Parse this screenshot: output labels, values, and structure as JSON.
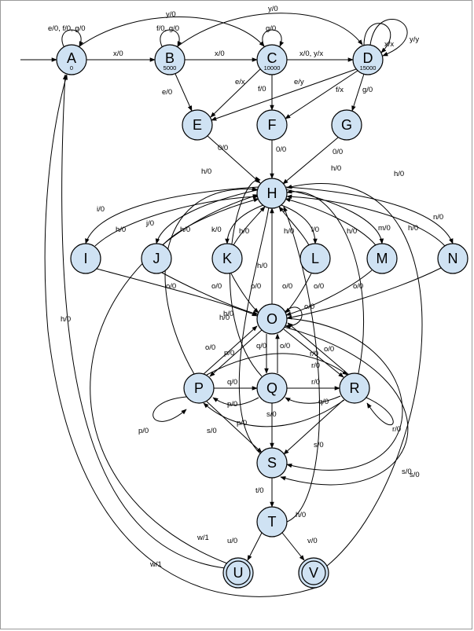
{
  "nodes": [
    {
      "id": "A",
      "label": "A",
      "sub": "0"
    },
    {
      "id": "B",
      "label": "B",
      "sub": "5000"
    },
    {
      "id": "C",
      "label": "C",
      "sub": "10000"
    },
    {
      "id": "D",
      "label": "D",
      "sub": "15000"
    },
    {
      "id": "E",
      "label": "E"
    },
    {
      "id": "F",
      "label": "F"
    },
    {
      "id": "G",
      "label": "G"
    },
    {
      "id": "H",
      "label": "H"
    },
    {
      "id": "I",
      "label": "I"
    },
    {
      "id": "J",
      "label": "J"
    },
    {
      "id": "K",
      "label": "K"
    },
    {
      "id": "L",
      "label": "L"
    },
    {
      "id": "M",
      "label": "M"
    },
    {
      "id": "N",
      "label": "N"
    },
    {
      "id": "O",
      "label": "O"
    },
    {
      "id": "P",
      "label": "P"
    },
    {
      "id": "Q",
      "label": "Q"
    },
    {
      "id": "R",
      "label": "R"
    },
    {
      "id": "S",
      "label": "S"
    },
    {
      "id": "T",
      "label": "T"
    },
    {
      "id": "U",
      "label": "U",
      "accepting": true
    },
    {
      "id": "V",
      "label": "V",
      "accepting": true
    }
  ],
  "edges": [
    {
      "id": "e-start-A",
      "from": "start",
      "to": "A",
      "label": ""
    },
    {
      "id": "e-A-A",
      "from": "A",
      "to": "A",
      "label": "e/0, f/0, g/0"
    },
    {
      "id": "e-A-B",
      "from": "A",
      "to": "B",
      "label": "x/0"
    },
    {
      "id": "e-A-C",
      "from": "A",
      "to": "C",
      "label": "y/0"
    },
    {
      "id": "e-B-B",
      "from": "B",
      "to": "B",
      "label": "f/0, g/0"
    },
    {
      "id": "e-B-C",
      "from": "B",
      "to": "C",
      "label": "x/0"
    },
    {
      "id": "e-B-D",
      "from": "B",
      "to": "D",
      "label": "y/0"
    },
    {
      "id": "e-B-E",
      "from": "B",
      "to": "E",
      "label": "e/0"
    },
    {
      "id": "e-C-C",
      "from": "C",
      "to": "C",
      "label": "g/0"
    },
    {
      "id": "e-C-D",
      "from": "C",
      "to": "D",
      "label": "x/0, y/x"
    },
    {
      "id": "e-C-E",
      "from": "C",
      "to": "E",
      "label": "e/x"
    },
    {
      "id": "e-C-F",
      "from": "C",
      "to": "F",
      "label": "f/0"
    },
    {
      "id": "e-D-D1",
      "from": "D",
      "to": "D",
      "label": "x/x"
    },
    {
      "id": "e-D-D2",
      "from": "D",
      "to": "D",
      "label": "y/y"
    },
    {
      "id": "e-D-E",
      "from": "D",
      "to": "E",
      "label": "e/y"
    },
    {
      "id": "e-D-F",
      "from": "D",
      "to": "F",
      "label": "f/x"
    },
    {
      "id": "e-D-G",
      "from": "D",
      "to": "G",
      "label": "g/0"
    },
    {
      "id": "e-E-H",
      "from": "E",
      "to": "H",
      "label": "0/0"
    },
    {
      "id": "e-F-H",
      "from": "F",
      "to": "H",
      "label": "0/0"
    },
    {
      "id": "e-G-H",
      "from": "G",
      "to": "H",
      "label": "0/0"
    },
    {
      "id": "e-H-I",
      "from": "H",
      "to": "I",
      "label": "i/0"
    },
    {
      "id": "e-I-H",
      "from": "I",
      "to": "H",
      "label": "h/0"
    },
    {
      "id": "e-H-J",
      "from": "H",
      "to": "J",
      "label": "j/0"
    },
    {
      "id": "e-J-H",
      "from": "J",
      "to": "H",
      "label": "h/0"
    },
    {
      "id": "e-H-K",
      "from": "H",
      "to": "K",
      "label": "k/0"
    },
    {
      "id": "e-K-H",
      "from": "K",
      "to": "H",
      "label": "h/0"
    },
    {
      "id": "e-H-L",
      "from": "H",
      "to": "L",
      "label": "l/0"
    },
    {
      "id": "e-L-H",
      "from": "L",
      "to": "H",
      "label": "h/0"
    },
    {
      "id": "e-H-M",
      "from": "H",
      "to": "M",
      "label": "m/0"
    },
    {
      "id": "e-M-H",
      "from": "M",
      "to": "H",
      "label": "h/0"
    },
    {
      "id": "e-H-N",
      "from": "H",
      "to": "N",
      "label": "n/0"
    },
    {
      "id": "e-N-H",
      "from": "N",
      "to": "H",
      "label": "h/0"
    },
    {
      "id": "e-I-O",
      "from": "I",
      "to": "O",
      "label": "o/0"
    },
    {
      "id": "e-J-O",
      "from": "J",
      "to": "O",
      "label": "o/0"
    },
    {
      "id": "e-K-O",
      "from": "K",
      "to": "O",
      "label": "o/0"
    },
    {
      "id": "e-L-O",
      "from": "L",
      "to": "O",
      "label": "o/0"
    },
    {
      "id": "e-M-O",
      "from": "M",
      "to": "O",
      "label": "o/0"
    },
    {
      "id": "e-N-O",
      "from": "N",
      "to": "O",
      "label": "o/0"
    },
    {
      "id": "e-O-O",
      "from": "O",
      "to": "O",
      "label": "o/0"
    },
    {
      "id": "e-O-H",
      "from": "O",
      "to": "H",
      "label": "h/0"
    },
    {
      "id": "e-O-P",
      "from": "O",
      "to": "P",
      "label": "p/0"
    },
    {
      "id": "e-P-O",
      "from": "P",
      "to": "O",
      "label": "o/0"
    },
    {
      "id": "e-O-Q",
      "from": "O",
      "to": "Q",
      "label": "q/0"
    },
    {
      "id": "e-Q-O",
      "from": "Q",
      "to": "O",
      "label": "o/0"
    },
    {
      "id": "e-O-R",
      "from": "O",
      "to": "R",
      "label": "r/0"
    },
    {
      "id": "e-R-O",
      "from": "R",
      "to": "O",
      "label": "o/0"
    },
    {
      "id": "e-O-S",
      "from": "O",
      "to": "S",
      "label": "s/0"
    },
    {
      "id": "e-P-P",
      "from": "P",
      "to": "P",
      "label": "p/0"
    },
    {
      "id": "e-P-Q",
      "from": "P",
      "to": "Q",
      "label": "q/0"
    },
    {
      "id": "e-Q-P",
      "from": "Q",
      "to": "P",
      "label": "p/0"
    },
    {
      "id": "e-P-R",
      "from": "P",
      "to": "R",
      "label": "r/0"
    },
    {
      "id": "e-R-P",
      "from": "R",
      "to": "P",
      "label": "p/0"
    },
    {
      "id": "e-P-S",
      "from": "P",
      "to": "S",
      "label": "s/0"
    },
    {
      "id": "e-P-H",
      "from": "P",
      "to": "H",
      "label": "h/0"
    },
    {
      "id": "e-Q-R",
      "from": "Q",
      "to": "R",
      "label": "r/0"
    },
    {
      "id": "e-R-Q",
      "from": "R",
      "to": "Q",
      "label": "q/0"
    },
    {
      "id": "e-Q-S",
      "from": "Q",
      "to": "S",
      "label": "s/0"
    },
    {
      "id": "e-R-R",
      "from": "R",
      "to": "R",
      "label": "r/0"
    },
    {
      "id": "e-R-S",
      "from": "R",
      "to": "S",
      "label": "s/0"
    },
    {
      "id": "e-R-H",
      "from": "R",
      "to": "H",
      "label": "h/0"
    },
    {
      "id": "e-S-T",
      "from": "S",
      "to": "T",
      "label": "t/0"
    },
    {
      "id": "e-T-H",
      "from": "T",
      "to": "H",
      "label": "h/0"
    },
    {
      "id": "e-T-U",
      "from": "T",
      "to": "U",
      "label": "u/0"
    },
    {
      "id": "e-T-V",
      "from": "T",
      "to": "V",
      "label": "v/0"
    },
    {
      "id": "e-U-A",
      "from": "U",
      "to": "A",
      "label": "w/1"
    },
    {
      "id": "e-V-A",
      "from": "V",
      "to": "A",
      "label": "w/1"
    },
    {
      "id": "e-U-H",
      "from": "U",
      "to": "H",
      "label": "h/0"
    },
    {
      "id": "e-V-H",
      "from": "V",
      "to": "H",
      "label": "h/0"
    },
    {
      "id": "e-S-H",
      "from": "S",
      "to": "H",
      "label": "h/0"
    },
    {
      "id": "e-Q-H",
      "from": "Q",
      "to": "H",
      "label": "h/0"
    },
    {
      "id": "e-N-S",
      "from": "O",
      "to": "S",
      "label": "s/0"
    }
  ],
  "colors": {
    "node_fill": "#cfe2f3",
    "stroke": "#000000"
  }
}
